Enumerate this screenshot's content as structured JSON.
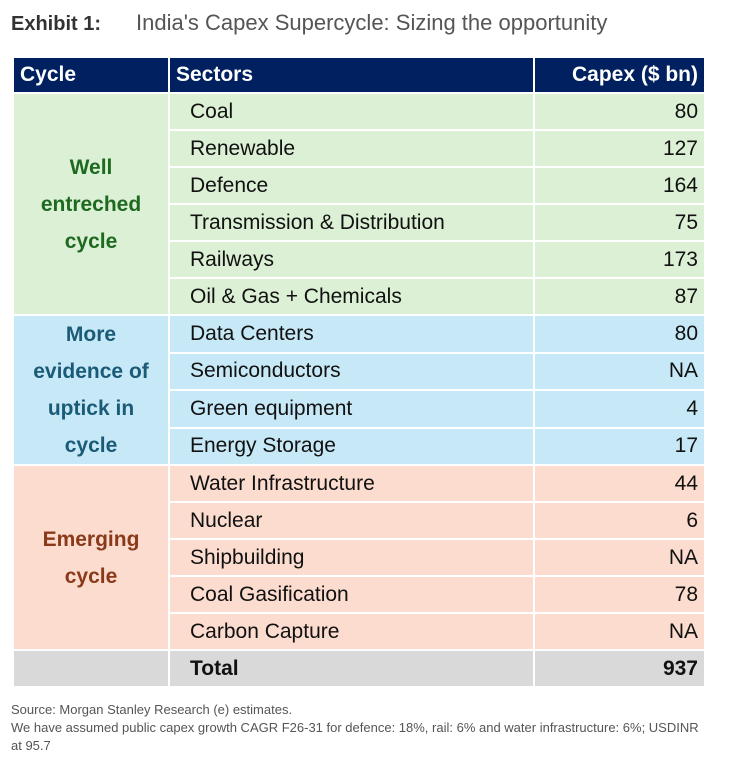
{
  "header": {
    "exhibit": "Exhibit 1:",
    "title": "India's Capex Supercycle: Sizing the opportunity"
  },
  "table": {
    "columns": [
      "Cycle",
      "Sectors",
      "Capex ($ bn)"
    ],
    "groups": [
      {
        "label": [
          "Well",
          "entreched",
          "cycle"
        ],
        "rows": [
          [
            "Coal",
            80
          ],
          [
            "Renewable",
            127
          ],
          [
            "Defence",
            164
          ],
          [
            "Transmission & Distribution",
            75
          ],
          [
            "Railways",
            173
          ],
          [
            "Oil & Gas + Chemicals",
            87
          ]
        ]
      },
      {
        "label": [
          "More",
          "evidence of",
          "uptick in",
          "cycle"
        ],
        "rows": [
          [
            "Data Centers",
            80
          ],
          [
            "Semiconductors",
            "NA"
          ],
          [
            "Green equipment",
            4
          ],
          [
            "Energy Storage",
            17
          ]
        ]
      },
      {
        "label": [
          "Emerging",
          "cycle"
        ],
        "rows": [
          [
            "Water Infrastructure",
            44
          ],
          [
            "Nuclear",
            6
          ],
          [
            "Shipbuilding",
            "NA"
          ],
          [
            "Coal Gasification",
            78
          ],
          [
            "Carbon Capture",
            "NA"
          ]
        ]
      }
    ],
    "total": [
      "Total",
      937
    ]
  },
  "footnotes": [
    "Source: Morgan Stanley Research (e) estimates.",
    "We have assumed public capex growth CAGR F26-31 for defence: 18%, rail: 6% and water infrastructure: 6%; USDINR at 95.7"
  ]
}
